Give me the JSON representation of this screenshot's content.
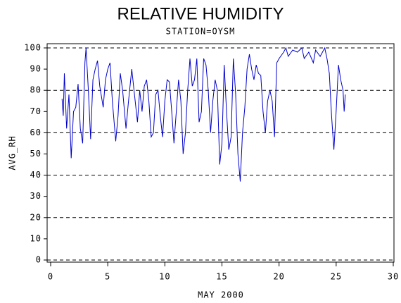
{
  "chart_data": {
    "type": "line",
    "title": "RELATIVE HUMIDITY",
    "subtitle": "STATION=OYSM",
    "x_label": "MAY 2000",
    "y_label": "AVG_RH",
    "x": [
      1.0,
      1.1,
      1.2,
      1.4,
      1.6,
      1.8,
      2.0,
      2.2,
      2.4,
      2.6,
      2.8,
      3.0,
      3.1,
      3.3,
      3.5,
      3.7,
      3.9,
      4.1,
      4.3,
      4.6,
      4.8,
      5.0,
      5.2,
      5.4,
      5.7,
      5.9,
      6.1,
      6.3,
      6.6,
      6.8,
      7.1,
      7.3,
      7.6,
      7.8,
      8.0,
      8.2,
      8.4,
      8.6,
      8.8,
      9.0,
      9.2,
      9.4,
      9.6,
      9.8,
      10.0,
      10.2,
      10.4,
      10.6,
      10.8,
      11.0,
      11.2,
      11.4,
      11.6,
      11.8,
      12.0,
      12.2,
      12.4,
      12.6,
      12.8,
      13.0,
      13.2,
      13.4,
      13.6,
      13.8,
      14.0,
      14.2,
      14.4,
      14.6,
      14.8,
      15.0,
      15.2,
      15.4,
      15.6,
      15.8,
      16.0,
      16.2,
      16.4,
      16.6,
      16.8,
      17.0,
      17.2,
      17.4,
      17.6,
      17.8,
      18.0,
      18.2,
      18.4,
      18.6,
      18.8,
      19.0,
      19.2,
      19.4,
      19.6,
      19.8,
      20.0,
      20.4,
      20.6,
      20.8,
      21.2,
      21.6,
      22.0,
      22.2,
      22.6,
      23.0,
      23.2,
      23.6,
      24.0,
      24.2,
      24.4,
      24.6,
      24.8,
      25.0,
      25.2,
      25.4,
      25.6,
      25.7,
      25.8
    ],
    "series": [
      {
        "name": "AVG_RH",
        "color": "#0000cc",
        "values": [
          76,
          68,
          88,
          62,
          78,
          48,
          70,
          72,
          83,
          62,
          55,
          93,
          100,
          80,
          57,
          85,
          90,
          94,
          82,
          72,
          85,
          90,
          93,
          75,
          56,
          68,
          88,
          80,
          62,
          74,
          90,
          80,
          65,
          80,
          70,
          82,
          85,
          75,
          58,
          60,
          78,
          80,
          68,
          58,
          75,
          85,
          84,
          70,
          55,
          70,
          85,
          75,
          50,
          60,
          80,
          95,
          82,
          85,
          95,
          65,
          70,
          95,
          92,
          80,
          60,
          75,
          85,
          80,
          45,
          55,
          92,
          70,
          52,
          58,
          95,
          78,
          50,
          37,
          60,
          72,
          90,
          97,
          90,
          85,
          92,
          88,
          87,
          70,
          60,
          75,
          80,
          75,
          58,
          93,
          95,
          98,
          100,
          96,
          99,
          98,
          100,
          95,
          98,
          93,
          99,
          96,
          100,
          95,
          88,
          68,
          52,
          70,
          92,
          85,
          80,
          70,
          78
        ]
      }
    ],
    "xlim": [
      0,
      30
    ],
    "xticks": [
      0,
      5,
      10,
      15,
      20,
      25,
      30
    ],
    "ylim": [
      0,
      100
    ],
    "yticks": [
      0,
      10,
      20,
      30,
      40,
      50,
      60,
      70,
      80,
      90,
      100
    ],
    "ygrid": [
      0,
      20,
      40,
      60,
      80,
      100
    ]
  }
}
